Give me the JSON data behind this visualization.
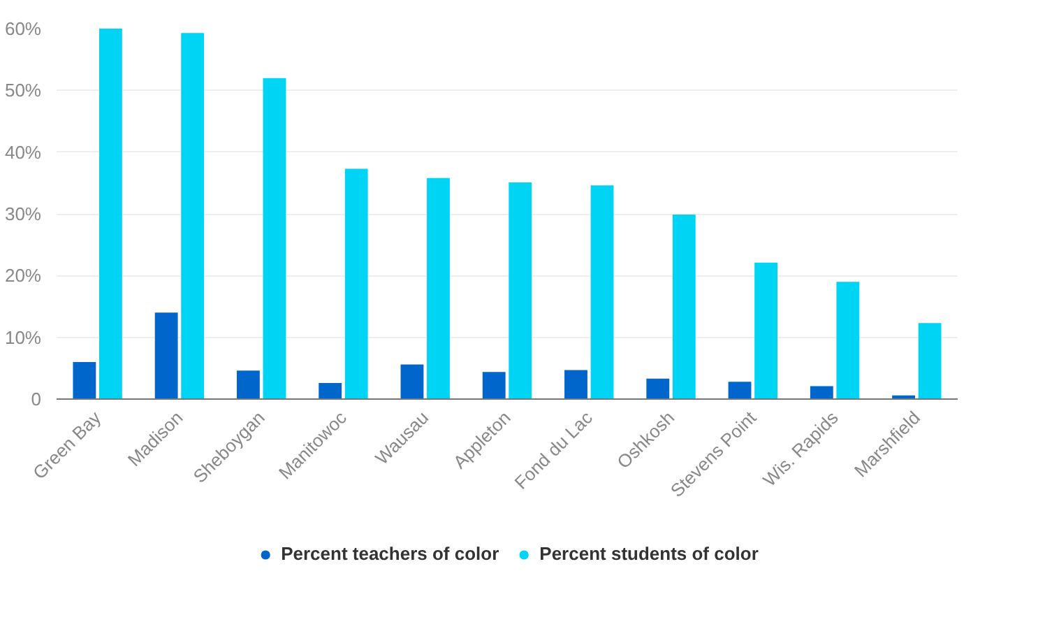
{
  "chart_data": {
    "type": "bar",
    "categories": [
      "Green Bay",
      "Madison",
      "Sheboygan",
      "Manitowoc",
      "Wausau",
      "Appleton",
      "Fond du Lac",
      "Oshkosh",
      "Stevens Point",
      "Wis. Rapids",
      "Marshfield"
    ],
    "series": [
      {
        "name": "Percent teachers of color",
        "color": "#0066cc",
        "values": [
          6.0,
          14.0,
          4.6,
          2.6,
          5.6,
          4.4,
          4.7,
          3.3,
          2.8,
          2.1,
          0.6
        ]
      },
      {
        "name": "Percent students of color",
        "color": "#00d4f5",
        "values": [
          60.0,
          59.3,
          52.0,
          37.3,
          35.8,
          35.1,
          34.6,
          29.9,
          22.1,
          19.0,
          12.3
        ]
      }
    ],
    "ylim": [
      0,
      60
    ],
    "yticks": [
      {
        "value": 0,
        "label": "0"
      },
      {
        "value": 10,
        "label": "10%"
      },
      {
        "value": 20,
        "label": "20%"
      },
      {
        "value": 30,
        "label": "30%"
      },
      {
        "value": 40,
        "label": "40%"
      },
      {
        "value": 50,
        "label": "50%"
      },
      {
        "value": 60,
        "label": "60%"
      }
    ],
    "grid": "y",
    "legend": "bottom"
  }
}
